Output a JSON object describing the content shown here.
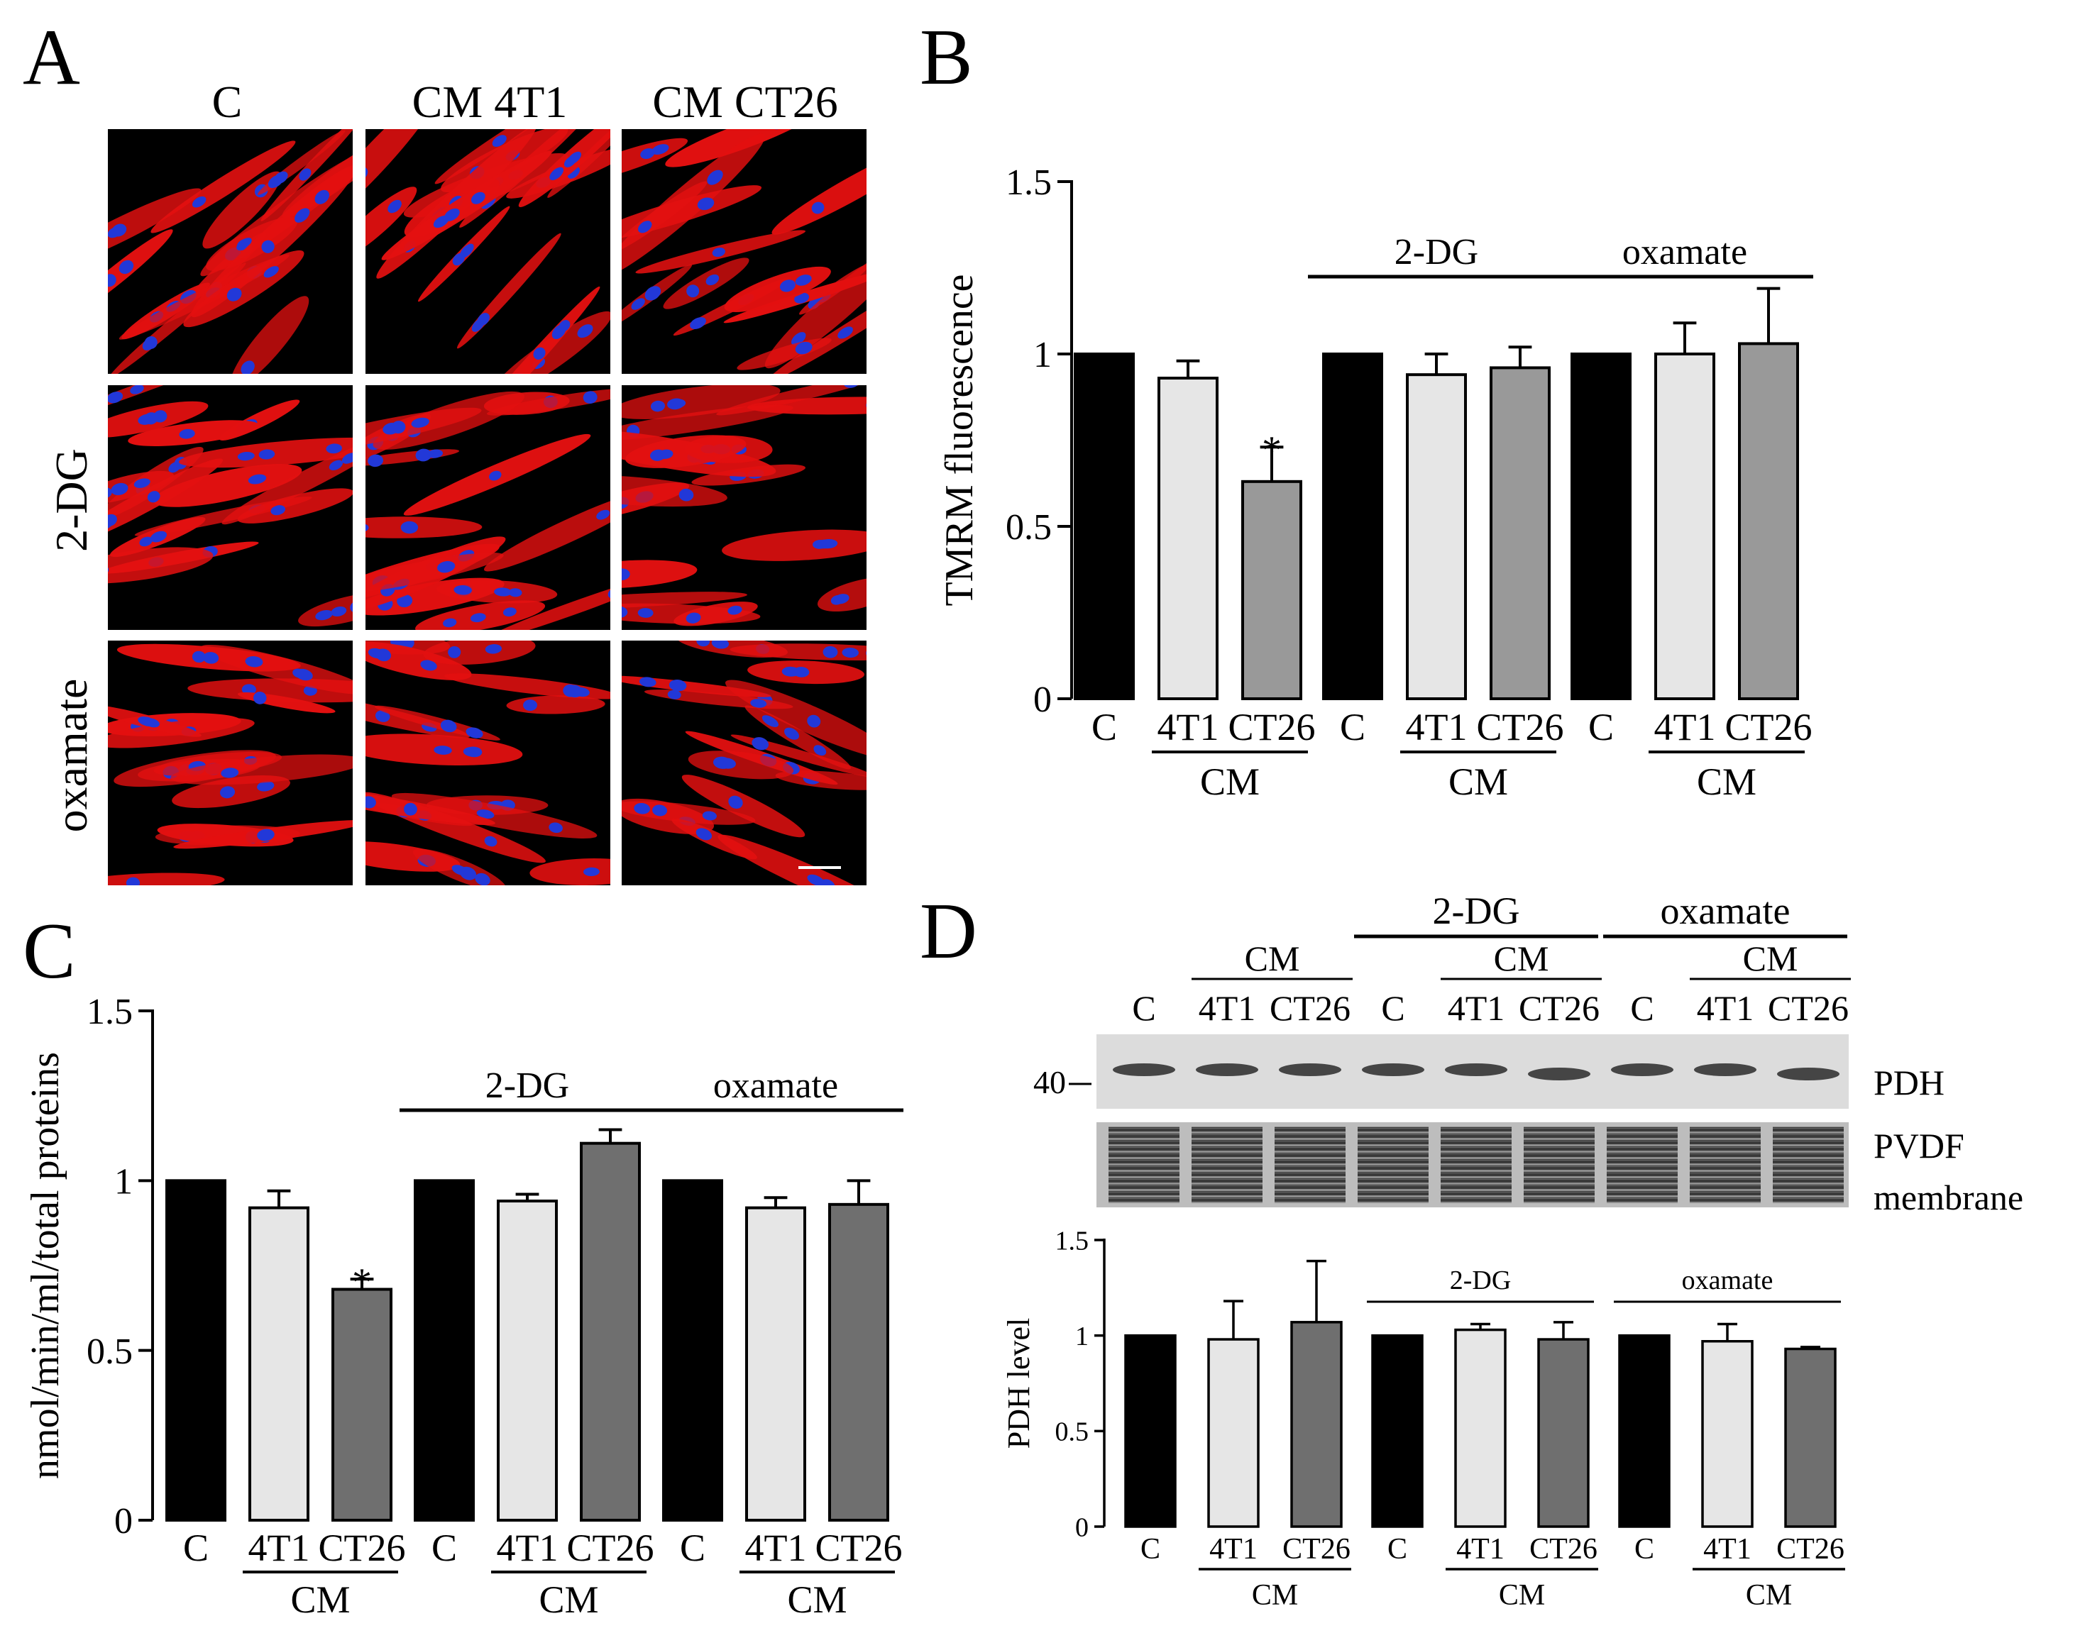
{
  "panel_labels": {
    "a": "A",
    "b": "B",
    "c": "C",
    "d": "D"
  },
  "microscopy": {
    "columns": [
      "C",
      "CM 4T1",
      "CM CT26"
    ],
    "rows": [
      "2-DG",
      "oxamate"
    ],
    "colors": {
      "cytoplasm": "#e31010",
      "nuclei": "#2238d8",
      "background": "#000000"
    }
  },
  "tick_labels": {
    "y": [
      "0",
      "0.5",
      "1",
      "1.5"
    ]
  },
  "x_labels": {
    "c": "C",
    "t41": "4T1",
    "ct26": "CT26",
    "cm": "CM"
  },
  "treatments": {
    "dg": "2-DG",
    "ox": "oxamate"
  },
  "colors": {
    "black": "#000000",
    "light": "#e6e6e6",
    "mid": "#999999",
    "dark": "#6f6f6f"
  },
  "chart_data": [
    {
      "panel": "B",
      "type": "bar",
      "ylabel": "TMRM fluorescence",
      "ylim": [
        0,
        1.5
      ],
      "categories": [
        "C",
        "4T1",
        "CT26",
        "C",
        "4T1",
        "CT26",
        "C",
        "4T1",
        "CT26"
      ],
      "groups": [
        "",
        "2-DG",
        "oxamate"
      ],
      "values": [
        1.0,
        0.93,
        0.63,
        1.0,
        0.94,
        0.96,
        1.0,
        1.0,
        1.03
      ],
      "errors": [
        0,
        0.05,
        0.1,
        0,
        0.06,
        0.06,
        0,
        0.09,
        0.16
      ],
      "significance": [
        "",
        "",
        "*",
        "",
        "",
        "",
        "",
        "",
        ""
      ]
    },
    {
      "panel": "C",
      "type": "bar",
      "ylabel": "nmol/min/ml/total proteins",
      "ylim": [
        0,
        1.5
      ],
      "categories": [
        "C",
        "4T1",
        "CT26",
        "C",
        "4T1",
        "CT26",
        "C",
        "4T1",
        "CT26"
      ],
      "groups": [
        "",
        "2-DG",
        "oxamate"
      ],
      "values": [
        1.0,
        0.92,
        0.68,
        1.0,
        0.94,
        1.11,
        1.0,
        0.92,
        0.93
      ],
      "errors": [
        0,
        0.05,
        0.03,
        0,
        0.02,
        0.04,
        0,
        0.03,
        0.07
      ],
      "significance": [
        "",
        "",
        "*",
        "",
        "",
        "",
        "",
        "",
        ""
      ]
    },
    {
      "panel": "D",
      "type": "bar",
      "ylabel": "PDH level",
      "ylim": [
        0,
        1.5
      ],
      "categories": [
        "C",
        "4T1",
        "CT26",
        "C",
        "4T1",
        "CT26",
        "C",
        "4T1",
        "CT26"
      ],
      "groups": [
        "",
        "2-DG",
        "oxamate"
      ],
      "values": [
        1.0,
        0.98,
        1.07,
        1.0,
        1.03,
        0.98,
        1.0,
        0.97,
        0.93
      ],
      "errors": [
        0,
        0.2,
        0.32,
        0,
        0.03,
        0.09,
        0,
        0.09,
        0.01
      ],
      "significance": [
        "",
        "",
        "",
        "",
        "",
        "",
        "",
        "",
        ""
      ]
    }
  ],
  "blot": {
    "header_cm": "CM",
    "lanes": [
      "C",
      "4T1",
      "CT26",
      "C",
      "4T1",
      "CT26",
      "C",
      "4T1",
      "CT26"
    ],
    "marker": "40",
    "pdh_label": "PDH",
    "pvdf_label_1": "PVDF",
    "pvdf_label_2": "membrane"
  }
}
